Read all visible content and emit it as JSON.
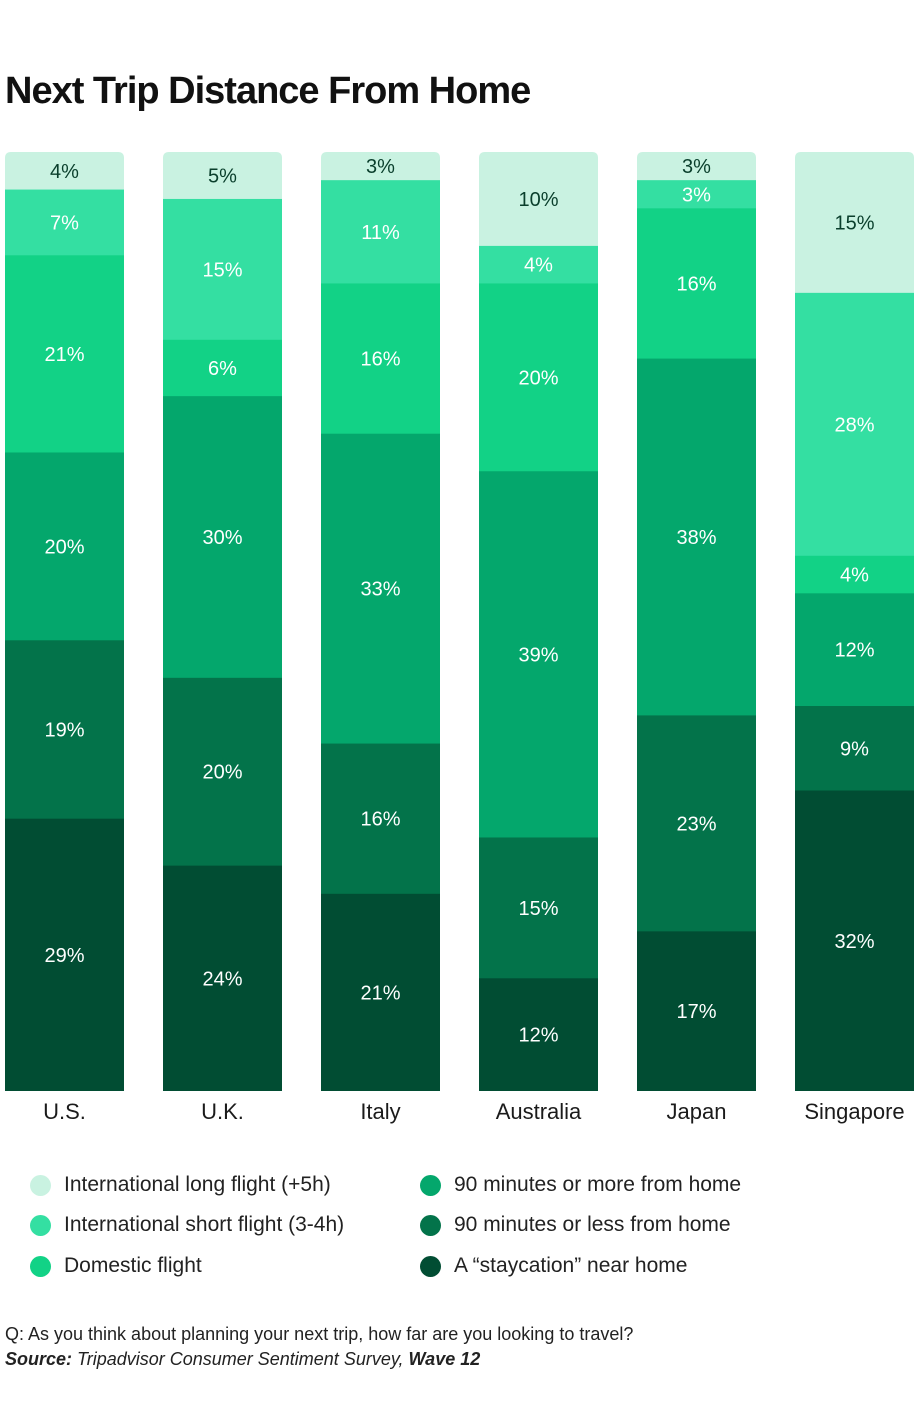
{
  "title": "Next Trip Distance From Home",
  "chart_data": {
    "type": "bar",
    "stacked": true,
    "title": "Next Trip Distance From Home",
    "categories": [
      "U.S.",
      "U.K.",
      "Italy",
      "Australia",
      "Japan",
      "Singapore"
    ],
    "series": [
      {
        "name": "International long flight (+5h)",
        "color": "#c9f2e1",
        "text_color": "#0a3f2c",
        "values": [
          4,
          5,
          3,
          10,
          3,
          15
        ],
        "labels": [
          "4%",
          "5%",
          "3%",
          "10%",
          "3%",
          "15%"
        ]
      },
      {
        "name": "International short flight (3-4h)",
        "color": "#34dfa2",
        "text_color": "#ffffff",
        "values": [
          7,
          15,
          11,
          4,
          3,
          28
        ],
        "labels": [
          "7%",
          "15%",
          "11%",
          "4%",
          "3%",
          "28%"
        ]
      },
      {
        "name": "Domestic flight",
        "color": "#12d286",
        "text_color": "#ffffff",
        "values": [
          21,
          6,
          16,
          20,
          16,
          4
        ],
        "labels": [
          "21%",
          "6%",
          "16%",
          "20%",
          "16%",
          "4%"
        ]
      },
      {
        "name": "90 minutes or more from home",
        "color": "#04a76c",
        "text_color": "#ffffff",
        "values": [
          20,
          30,
          33,
          39,
          38,
          12
        ],
        "labels": [
          "20%",
          "30%",
          "33%",
          "39%",
          "38%",
          "12%"
        ]
      },
      {
        "name": "90 minutes or less from home",
        "color": "#03734a",
        "text_color": "#ffffff",
        "values": [
          19,
          20,
          16,
          15,
          23,
          9
        ],
        "labels": [
          "19%",
          "20%",
          "16%",
          "15%",
          "23%",
          "9%"
        ]
      },
      {
        "name": "A “staycation” near home",
        "color": "#014d33",
        "text_color": "#ffffff",
        "values": [
          29,
          24,
          21,
          12,
          17,
          32
        ],
        "labels": [
          "29%",
          "24%",
          "21%",
          "12%",
          "17%",
          "32%"
        ]
      }
    ],
    "ylim": [
      0,
      100
    ],
    "grid": false,
    "legend_position": "bottom"
  },
  "footer": {
    "question": "Q: As you think about planning your next trip, how far are you looking to travel?",
    "source_label": "Source:",
    "source_text": "Tripadvisor Consumer Sentiment Survey,",
    "source_wave": "Wave 12"
  }
}
